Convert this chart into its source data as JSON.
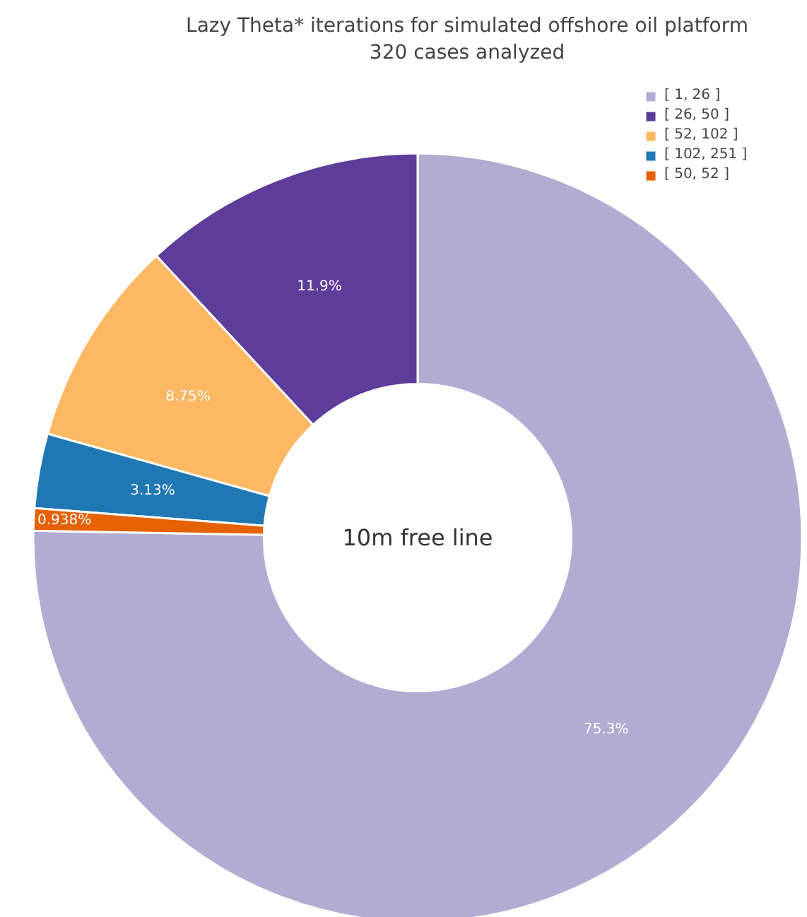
{
  "chart_data": {
    "type": "donut",
    "title": "Lazy Theta* iterations for simulated offshore oil platform",
    "subtitle": "320 cases analyzed",
    "categories": [
      "[ 1, 26 ]",
      "[ 26, 50 ]",
      "[ 52, 102 ]",
      "[ 102, 251 ]",
      "[ 50, 52 ]"
    ],
    "values": [
      75.3,
      11.9,
      8.75,
      3.13,
      0.938
    ],
    "colors": [
      "#b2abd2",
      "#5e3c99",
      "#fdb863",
      "#1f78b4",
      "#e66101"
    ],
    "value_labels": [
      "75.3%",
      "11.9%",
      "8.75%",
      "3.13%",
      "0.938%"
    ],
    "legend": "top right",
    "annotations": [
      "10m free line"
    ]
  }
}
